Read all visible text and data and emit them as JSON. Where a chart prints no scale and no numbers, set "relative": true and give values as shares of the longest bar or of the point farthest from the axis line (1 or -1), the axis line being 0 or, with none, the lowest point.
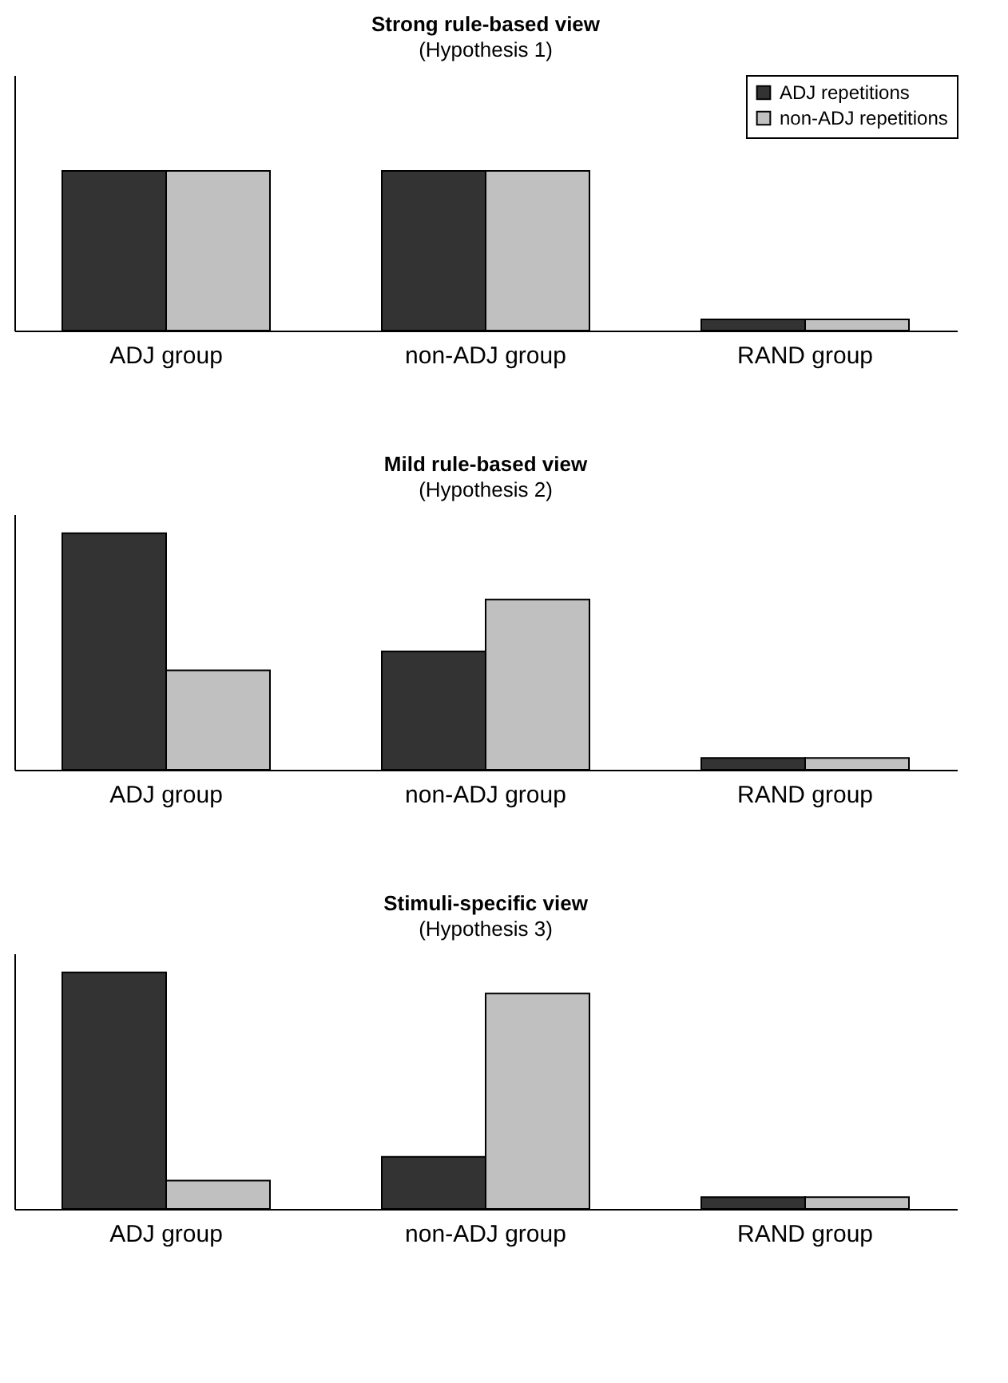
{
  "chart_data": [
    {
      "type": "bar",
      "title": "Strong rule-based view",
      "subtitle": "(Hypothesis 1)",
      "relative": true,
      "categories": [
        "ADJ group",
        "non-ADJ group",
        "RAND group"
      ],
      "legend": "top right",
      "series": [
        {
          "name": "ADJ repetitions",
          "color": "#333333",
          "values": [
            1,
            1,
            0.07
          ]
        },
        {
          "name": "non-ADJ repetitions",
          "color": "#c0c0c0",
          "values": [
            1,
            1,
            0.07
          ]
        }
      ]
    },
    {
      "type": "bar",
      "title": "Mild rule-based view",
      "subtitle": "(Hypothesis 2)",
      "relative": true,
      "categories": [
        "ADJ group",
        "non-ADJ group",
        "RAND group"
      ],
      "series": [
        {
          "color": "#333333",
          "values": [
            1,
            0.5,
            0.05
          ]
        },
        {
          "color": "#c0c0c0",
          "values": [
            0.42,
            0.72,
            0.05
          ]
        }
      ]
    },
    {
      "type": "bar",
      "title": "Stimuli-specific view",
      "subtitle": "(Hypothesis 3)",
      "relative": true,
      "categories": [
        "ADJ group",
        "non-ADJ group",
        "RAND group"
      ],
      "series": [
        {
          "color": "#333333",
          "values": [
            1,
            0.22,
            0.05
          ]
        },
        {
          "color": "#c0c0c0",
          "values": [
            0.12,
            0.91,
            0.05
          ]
        }
      ]
    }
  ]
}
